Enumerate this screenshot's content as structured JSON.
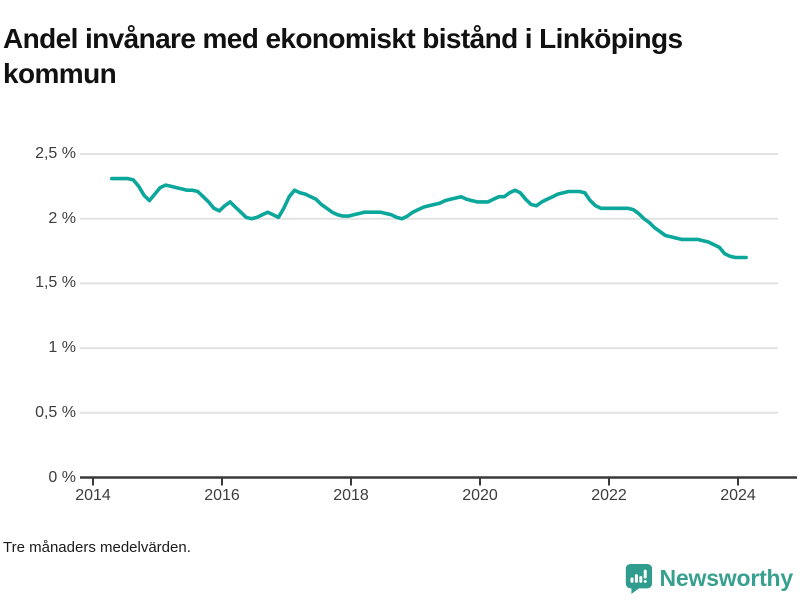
{
  "title": "Andel invånare med ekonomiskt bistånd i Linköpings kommun",
  "footer": {
    "note": "Tre månaders medelvärden."
  },
  "branding": {
    "logo_text": "Newsworthy",
    "logo_color": "#38a08f",
    "logo_icon": "bar-chart-speech-bubble-icon"
  },
  "colors": {
    "line": "#0ca79b",
    "grid": "#e2e2e2",
    "axis": "#3a3a3a",
    "tick_label": "#3d3d3d",
    "title": "#111111"
  },
  "chart_data": {
    "type": "line",
    "title": "Andel invånare med ekonomiskt bistånd i Linköpings kommun",
    "subtitle": "",
    "note": "Tre månaders medelvärden.",
    "unit": "%",
    "grid": "horizontal",
    "legend_position": "none",
    "ylim": [
      0,
      2.5
    ],
    "xlim_years": [
      2013.8,
      2024.92
    ],
    "y_tick_values": [
      0,
      0.5,
      1,
      1.5,
      2,
      2.5
    ],
    "y_tick_labels": [
      "0 %",
      "0,5 %",
      "1 %",
      "1,5 %",
      "2 %",
      "2,5 %"
    ],
    "x_tick_values": [
      2014,
      2016,
      2018,
      2020,
      2022,
      2024
    ],
    "x_tick_labels": [
      "2014",
      "2016",
      "2018",
      "2020",
      "2022",
      "2024"
    ],
    "series": [
      {
        "name": "Andel invånare med ekonomiskt bistånd, Linköpings kommun",
        "color": "#0ca79b",
        "points": [
          [
            "2014-04",
            2.31
          ],
          [
            "2014-05",
            2.31
          ],
          [
            "2014-06",
            2.31
          ],
          [
            "2014-07",
            2.31
          ],
          [
            "2014-08",
            2.3
          ],
          [
            "2014-09",
            2.25
          ],
          [
            "2014-10",
            2.18
          ],
          [
            "2014-11",
            2.14
          ],
          [
            "2014-12",
            2.19
          ],
          [
            "2015-01",
            2.24
          ],
          [
            "2015-02",
            2.26
          ],
          [
            "2015-03",
            2.25
          ],
          [
            "2015-04",
            2.24
          ],
          [
            "2015-05",
            2.23
          ],
          [
            "2015-06",
            2.22
          ],
          [
            "2015-07",
            2.22
          ],
          [
            "2015-08",
            2.21
          ],
          [
            "2015-09",
            2.17
          ],
          [
            "2015-10",
            2.13
          ],
          [
            "2015-11",
            2.08
          ],
          [
            "2015-12",
            2.06
          ],
          [
            "2016-01",
            2.1
          ],
          [
            "2016-02",
            2.13
          ],
          [
            "2016-03",
            2.09
          ],
          [
            "2016-04",
            2.05
          ],
          [
            "2016-05",
            2.01
          ],
          [
            "2016-06",
            2.0
          ],
          [
            "2016-07",
            2.01
          ],
          [
            "2016-08",
            2.03
          ],
          [
            "2016-09",
            2.05
          ],
          [
            "2016-10",
            2.03
          ],
          [
            "2016-11",
            2.01
          ],
          [
            "2016-12",
            2.08
          ],
          [
            "2017-01",
            2.17
          ],
          [
            "2017-02",
            2.22
          ],
          [
            "2017-03",
            2.2
          ],
          [
            "2017-04",
            2.19
          ],
          [
            "2017-05",
            2.17
          ],
          [
            "2017-06",
            2.15
          ],
          [
            "2017-07",
            2.11
          ],
          [
            "2017-08",
            2.08
          ],
          [
            "2017-09",
            2.05
          ],
          [
            "2017-10",
            2.03
          ],
          [
            "2017-11",
            2.02
          ],
          [
            "2017-12",
            2.02
          ],
          [
            "2018-01",
            2.03
          ],
          [
            "2018-02",
            2.04
          ],
          [
            "2018-03",
            2.05
          ],
          [
            "2018-04",
            2.05
          ],
          [
            "2018-05",
            2.05
          ],
          [
            "2018-06",
            2.05
          ],
          [
            "2018-07",
            2.04
          ],
          [
            "2018-08",
            2.03
          ],
          [
            "2018-09",
            2.01
          ],
          [
            "2018-10",
            2.0
          ],
          [
            "2018-11",
            2.02
          ],
          [
            "2018-12",
            2.05
          ],
          [
            "2019-01",
            2.07
          ],
          [
            "2019-02",
            2.09
          ],
          [
            "2019-03",
            2.1
          ],
          [
            "2019-04",
            2.11
          ],
          [
            "2019-05",
            2.12
          ],
          [
            "2019-06",
            2.14
          ],
          [
            "2019-07",
            2.15
          ],
          [
            "2019-08",
            2.16
          ],
          [
            "2019-09",
            2.17
          ],
          [
            "2019-10",
            2.15
          ],
          [
            "2019-11",
            2.14
          ],
          [
            "2019-12",
            2.13
          ],
          [
            "2020-01",
            2.13
          ],
          [
            "2020-02",
            2.13
          ],
          [
            "2020-03",
            2.15
          ],
          [
            "2020-04",
            2.17
          ],
          [
            "2020-05",
            2.17
          ],
          [
            "2020-06",
            2.2
          ],
          [
            "2020-07",
            2.22
          ],
          [
            "2020-08",
            2.2
          ],
          [
            "2020-09",
            2.15
          ],
          [
            "2020-10",
            2.11
          ],
          [
            "2020-11",
            2.1
          ],
          [
            "2020-12",
            2.13
          ],
          [
            "2021-01",
            2.15
          ],
          [
            "2021-02",
            2.17
          ],
          [
            "2021-03",
            2.19
          ],
          [
            "2021-04",
            2.2
          ],
          [
            "2021-05",
            2.21
          ],
          [
            "2021-06",
            2.21
          ],
          [
            "2021-07",
            2.21
          ],
          [
            "2021-08",
            2.2
          ],
          [
            "2021-09",
            2.14
          ],
          [
            "2021-10",
            2.1
          ],
          [
            "2021-11",
            2.08
          ],
          [
            "2021-12",
            2.08
          ],
          [
            "2022-01",
            2.08
          ],
          [
            "2022-02",
            2.08
          ],
          [
            "2022-03",
            2.08
          ],
          [
            "2022-04",
            2.08
          ],
          [
            "2022-05",
            2.07
          ],
          [
            "2022-06",
            2.04
          ],
          [
            "2022-07",
            2.0
          ],
          [
            "2022-08",
            1.97
          ],
          [
            "2022-09",
            1.93
          ],
          [
            "2022-10",
            1.9
          ],
          [
            "2022-11",
            1.87
          ],
          [
            "2022-12",
            1.86
          ],
          [
            "2023-01",
            1.85
          ],
          [
            "2023-02",
            1.84
          ],
          [
            "2023-03",
            1.84
          ],
          [
            "2023-04",
            1.84
          ],
          [
            "2023-05",
            1.84
          ],
          [
            "2023-06",
            1.83
          ],
          [
            "2023-07",
            1.82
          ],
          [
            "2023-08",
            1.8
          ],
          [
            "2023-09",
            1.78
          ],
          [
            "2023-10",
            1.73
          ],
          [
            "2023-11",
            1.71
          ],
          [
            "2023-12",
            1.7
          ],
          [
            "2024-01",
            1.7
          ],
          [
            "2024-02",
            1.7
          ]
        ]
      }
    ]
  }
}
